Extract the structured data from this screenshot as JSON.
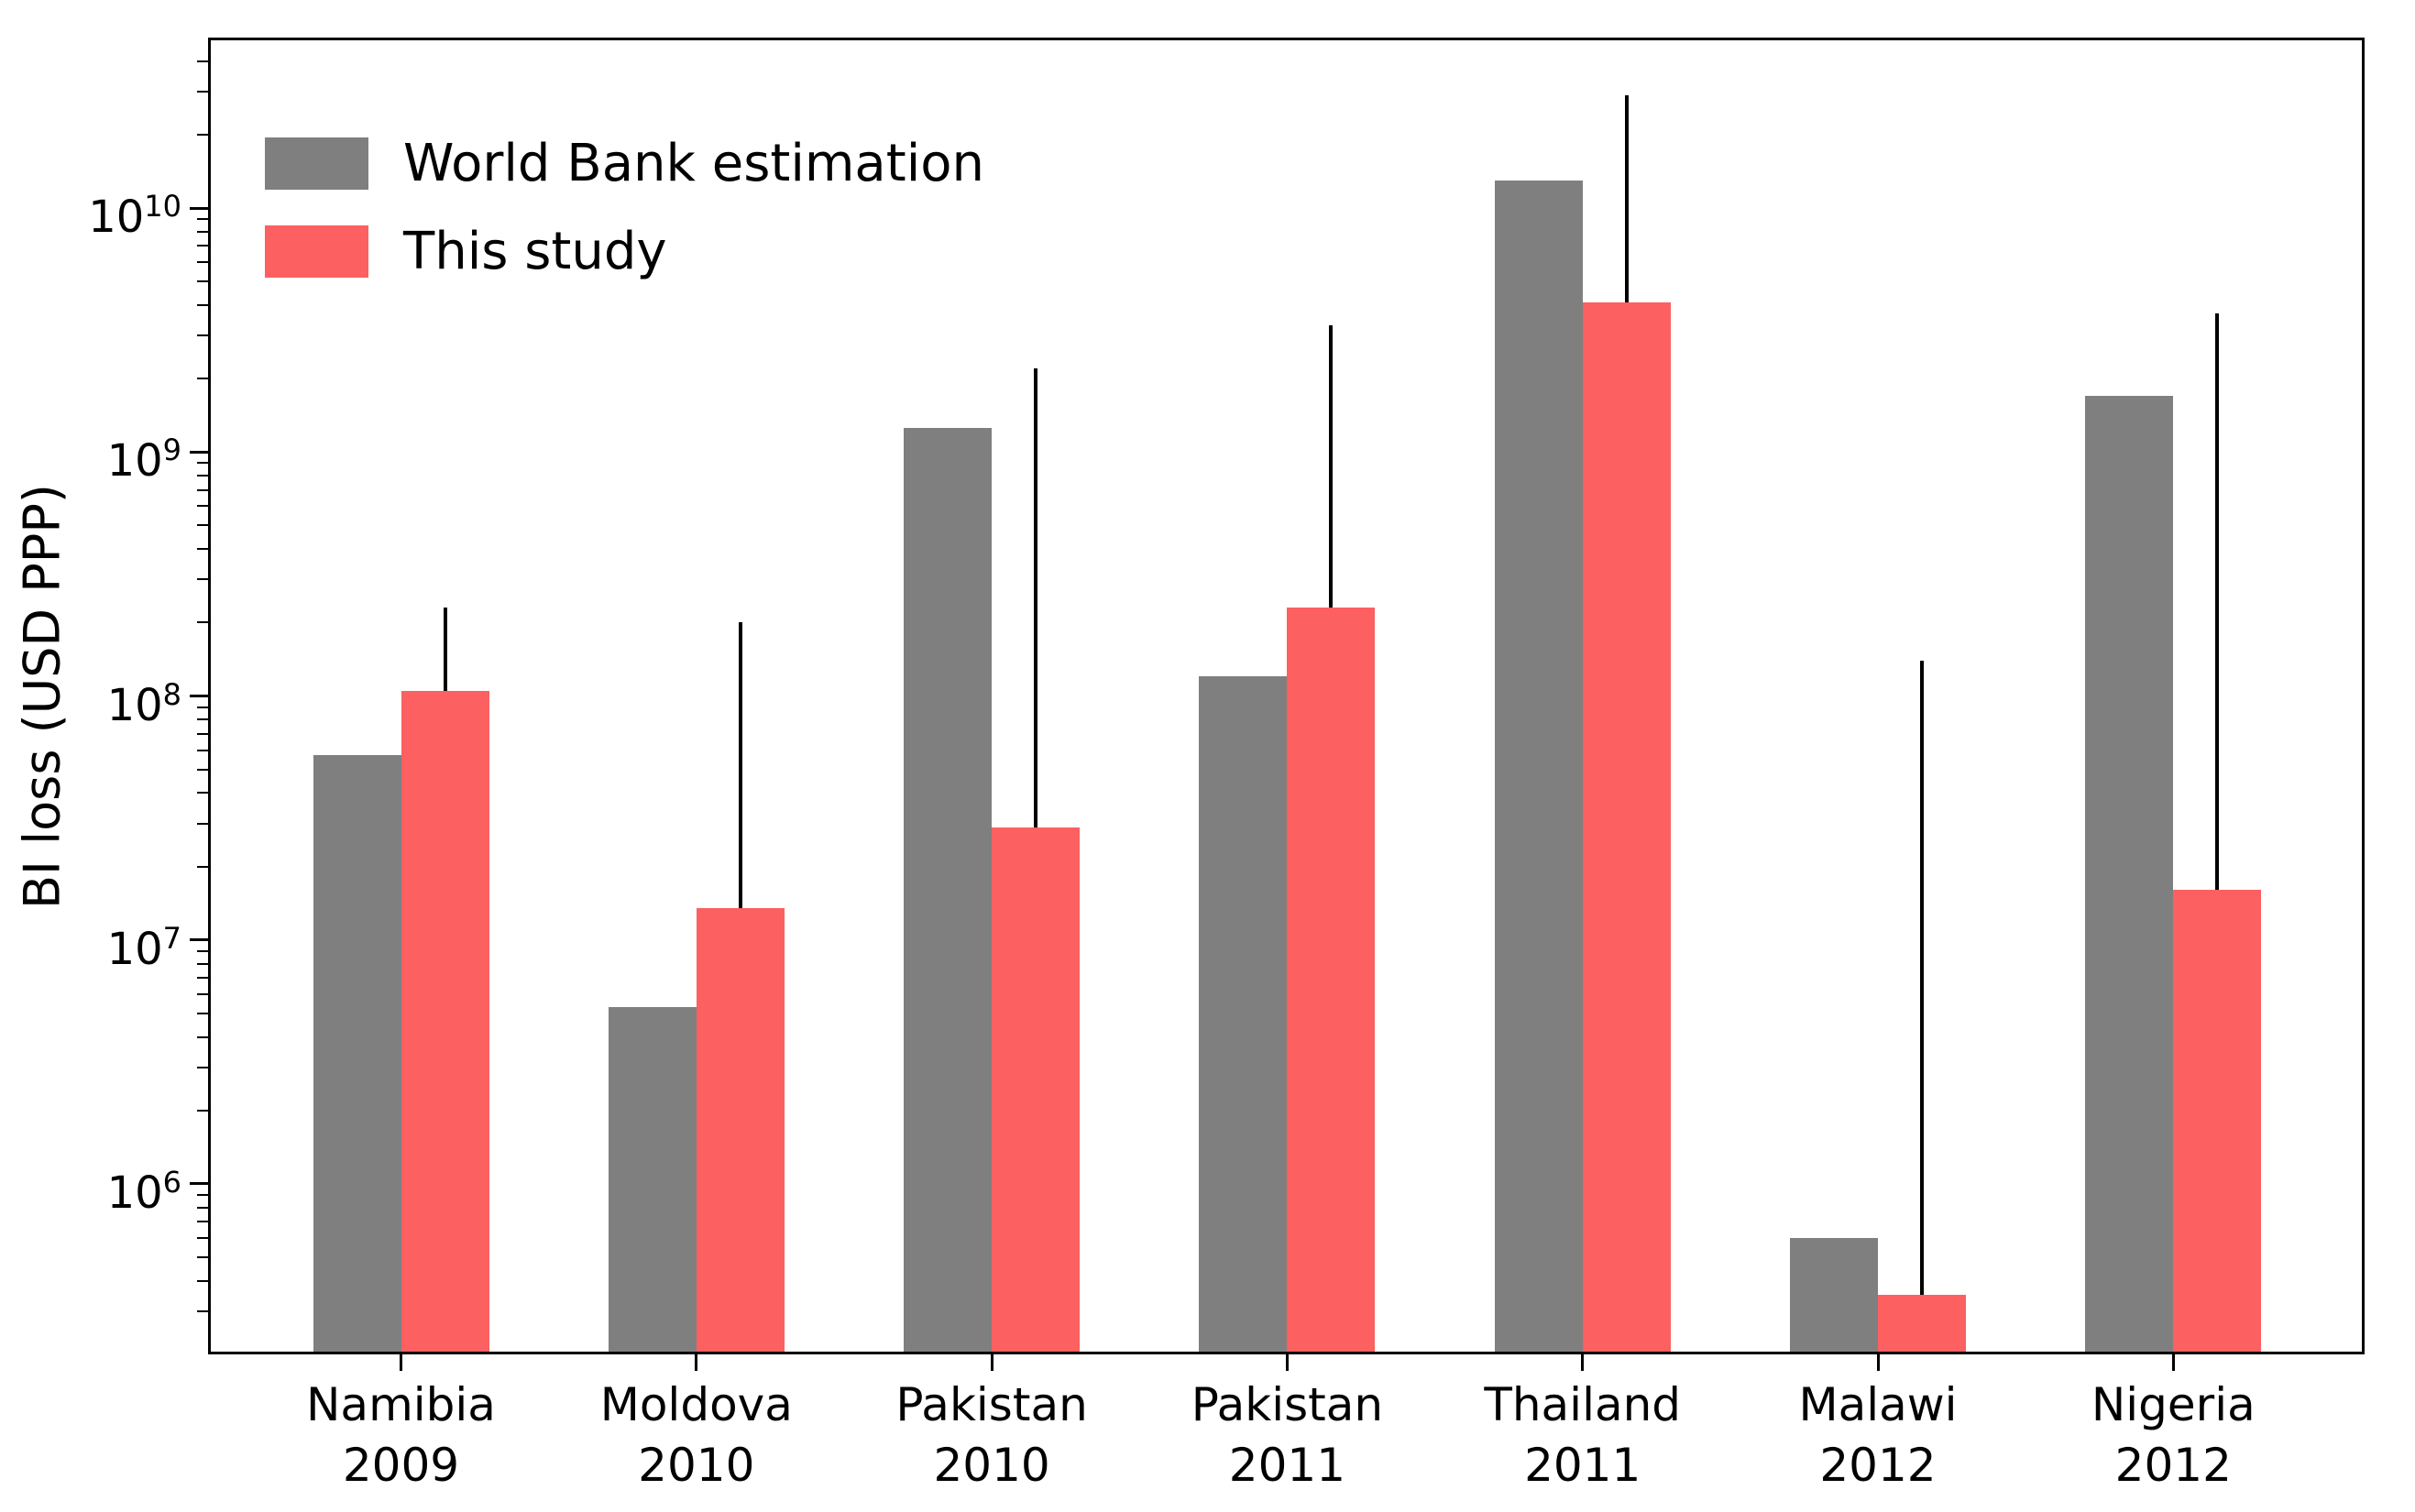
{
  "chart_data": {
    "type": "bar",
    "title": "",
    "xlabel": "",
    "grid": false,
    "legend_position": "upper left",
    "y_axis": {
      "label": "BI loss (USD PPP)",
      "scale": "log",
      "ylim": [
        200000,
        50000000000
      ],
      "major_ticks": [
        {
          "value": 1000000,
          "base": "10",
          "exponent": "6"
        },
        {
          "value": 10000000,
          "base": "10",
          "exponent": "7"
        },
        {
          "value": 100000000,
          "base": "10",
          "exponent": "8"
        },
        {
          "value": 1000000000,
          "base": "10",
          "exponent": "9"
        },
        {
          "value": 10000000000,
          "base": "10",
          "exponent": "10"
        }
      ]
    },
    "categories": [
      {
        "country": "Namibia",
        "year": "2009"
      },
      {
        "country": "Moldova",
        "year": "2010"
      },
      {
        "country": "Pakistan",
        "year": "2010"
      },
      {
        "country": "Pakistan",
        "year": "2011"
      },
      {
        "country": "Thailand",
        "year": "2011"
      },
      {
        "country": "Malawi",
        "year": "2012"
      },
      {
        "country": "Nigeria",
        "year": "2012"
      }
    ],
    "series": [
      {
        "name": "World Bank estimation",
        "color": "#7f7f7f",
        "values": [
          57000000,
          5300000,
          1250000000,
          120000000,
          13000000000,
          600000,
          1700000000
        ]
      },
      {
        "name": "This study",
        "color": "#fc6060",
        "values": [
          105000000,
          13500000,
          29000000,
          230000000,
          4100000000,
          350000,
          16000000
        ],
        "error_upper": [
          230000000,
          200000000,
          2200000000,
          3300000000,
          29000000000,
          140000000,
          3700000000
        ],
        "error_color": "#000000"
      }
    ]
  }
}
